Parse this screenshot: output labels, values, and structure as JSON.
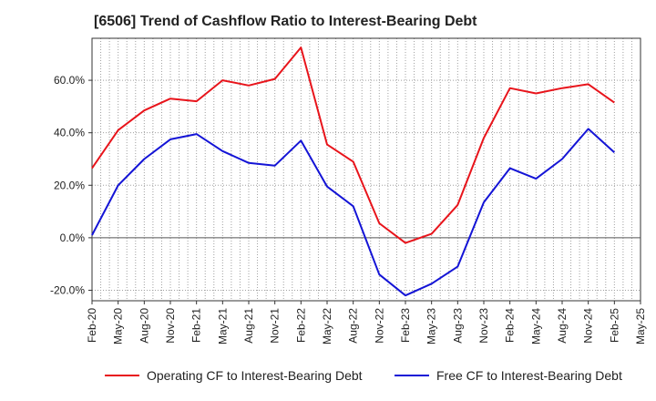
{
  "chart_data": {
    "type": "line",
    "title": "[6506]  Trend of Cashflow Ratio to Interest-Bearing Debt",
    "xlabel": "",
    "ylabel": "",
    "ylim": [
      -24,
      76
    ],
    "yticks": [
      -20,
      0,
      20,
      40,
      60
    ],
    "ytick_labels": [
      "-20.0%",
      "0.0%",
      "20.0%",
      "40.0%",
      "60.0%"
    ],
    "xtick_labels": [
      "Feb-20",
      "May-20",
      "Aug-20",
      "Nov-20",
      "Feb-21",
      "May-21",
      "Aug-21",
      "Nov-21",
      "Feb-22",
      "May-22",
      "Aug-22",
      "Nov-22",
      "Feb-23",
      "May-23",
      "Aug-23",
      "Nov-23",
      "Feb-24",
      "May-24",
      "Aug-24",
      "Nov-24",
      "Feb-25",
      "May-25"
    ],
    "grid": true,
    "legend_position": "bottom",
    "x": [
      "Feb-20",
      "May-20",
      "Aug-20",
      "Nov-20",
      "Feb-21",
      "May-21",
      "Aug-21",
      "Nov-21",
      "Feb-22",
      "May-22",
      "Aug-22",
      "Nov-22",
      "Feb-23",
      "May-23",
      "Aug-23",
      "Nov-23",
      "Feb-24",
      "May-24",
      "Aug-24",
      "Nov-24",
      "Feb-25"
    ],
    "series": [
      {
        "name": "Operating CF to Interest-Bearing Debt",
        "color": "#e8141b",
        "values": [
          26.5,
          41.0,
          48.5,
          53.0,
          52.0,
          60.0,
          58.0,
          60.5,
          72.5,
          35.5,
          29.0,
          5.5,
          -2.0,
          1.5,
          12.5,
          38.0,
          57.0,
          55.0,
          57.0,
          58.5,
          51.5
        ]
      },
      {
        "name": "Free CF to Interest-Bearing Debt",
        "color": "#1414d6",
        "values": [
          1.0,
          20.0,
          30.0,
          37.5,
          39.5,
          33.0,
          28.5,
          27.5,
          37.0,
          19.5,
          12.0,
          -14.0,
          -22.0,
          -17.5,
          -11.0,
          13.5,
          26.5,
          22.5,
          30.0,
          41.5,
          32.5
        ]
      }
    ]
  },
  "colors": {
    "grid": "#a0a0a0",
    "axis": "#333333",
    "zero_line": "#555555"
  }
}
